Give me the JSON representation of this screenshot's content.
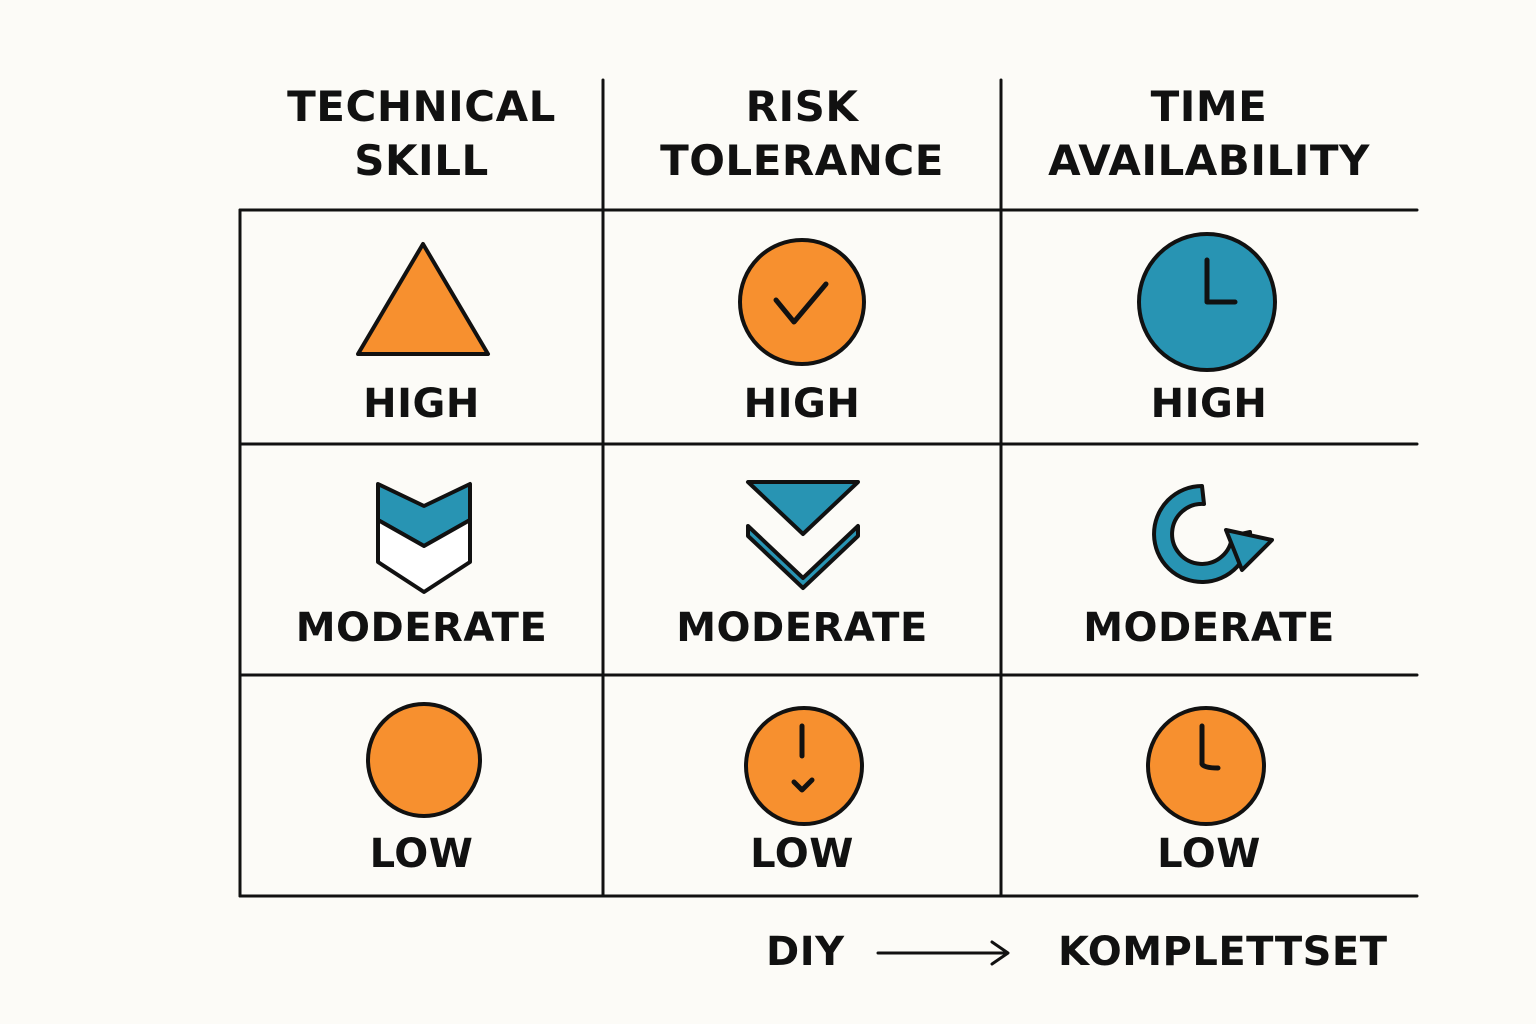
{
  "headers": {
    "technical_skill": "TECHNICAL\nSKILL",
    "risk_tolerance": "RISK\nTOLERANCE",
    "time_availability": "TIME\nAVAILABILITY"
  },
  "rows": [
    {
      "technical_skill": {
        "label": "HIGH",
        "icon": "triangle-icon"
      },
      "risk_tolerance": {
        "label": "HIGH",
        "icon": "checkmark-circle-icon"
      },
      "time_availability": {
        "label": "HIGH",
        "icon": "clock-icon"
      }
    },
    {
      "technical_skill": {
        "label": "MODERATE",
        "icon": "shield-chevron-icon"
      },
      "risk_tolerance": {
        "label": "MODERATE",
        "icon": "double-chevron-down-icon"
      },
      "time_availability": {
        "label": "MODERATE",
        "icon": "refresh-arrow-icon"
      }
    },
    {
      "technical_skill": {
        "label": "LOW",
        "icon": "circle-icon"
      },
      "risk_tolerance": {
        "label": "LOW",
        "icon": "exclamation-circle-icon"
      },
      "time_availability": {
        "label": "LOW",
        "icon": "clock-icon"
      }
    }
  ],
  "footer": {
    "left": "DIY",
    "right": "KOMPLETTSET",
    "arrow_icon": "right-arrow-icon"
  },
  "colors": {
    "orange": "#f7902f",
    "blue": "#2894b3",
    "ink": "#111111",
    "background": "#fcfbf7"
  }
}
